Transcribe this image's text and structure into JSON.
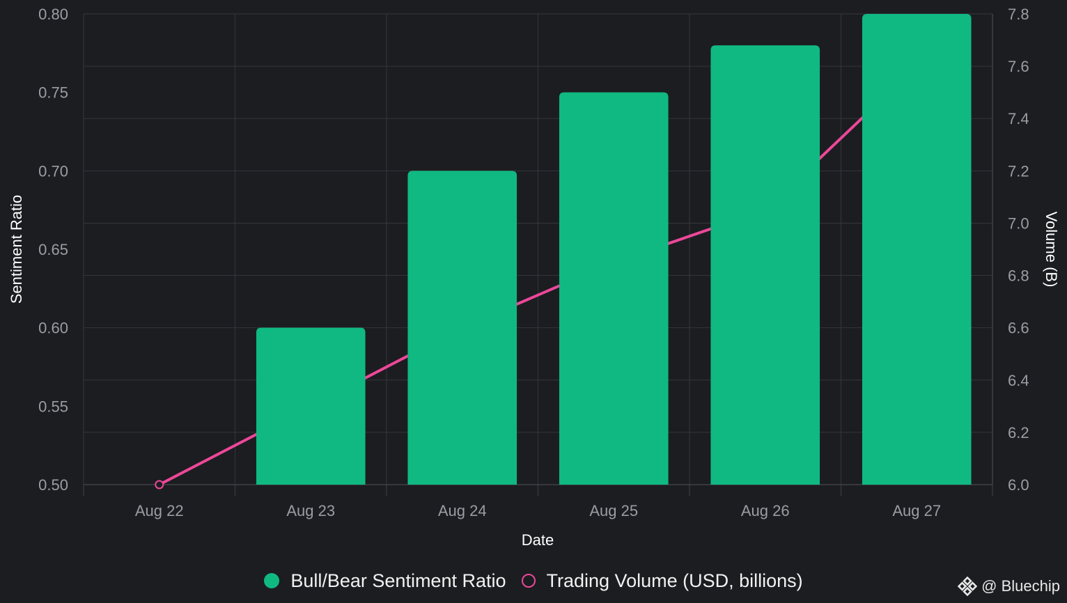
{
  "chart_data": {
    "type": "bar",
    "categories": [
      "Aug 22",
      "Aug 23",
      "Aug 24",
      "Aug 25",
      "Aug 26",
      "Aug 27"
    ],
    "series": [
      {
        "name": "Bull/Bear Sentiment Ratio",
        "type": "bar",
        "axis": "left",
        "color": "#10b981",
        "values": [
          0.5,
          0.6,
          0.7,
          0.75,
          0.78,
          0.8
        ]
      },
      {
        "name": "Trading Volume (USD, billions)",
        "type": "line",
        "axis": "right",
        "color": "#ec4899",
        "values": [
          6.0,
          6.3,
          6.6,
          6.85,
          7.05,
          7.6
        ]
      }
    ],
    "xlabel": "Date",
    "ylabel": "Sentiment Ratio",
    "y2label": "Volume (B)",
    "ylim": [
      0.5,
      0.8
    ],
    "y2lim": [
      6.0,
      7.8
    ],
    "yticks": [
      "0.50",
      "0.55",
      "0.60",
      "0.65",
      "0.70",
      "0.75",
      "0.80"
    ],
    "y2ticks": [
      "6.0",
      "6.2",
      "6.4",
      "6.6",
      "6.8",
      "7.0",
      "7.2",
      "7.4",
      "7.6",
      "7.8"
    ],
    "grid": true,
    "legend_position": "bottom-center"
  },
  "legend": {
    "bar_label": "Bull/Bear Sentiment Ratio",
    "line_label": "Trading Volume (USD, billions)"
  },
  "watermark": {
    "text": "@ Bluechip",
    "icon": "bluechip-diamond-logo-icon"
  },
  "colors": {
    "background": "#1c1d21",
    "grid": "#34363b",
    "bar": "#10b981",
    "line": "#ec4899",
    "tick_text": "#9b9da3"
  }
}
